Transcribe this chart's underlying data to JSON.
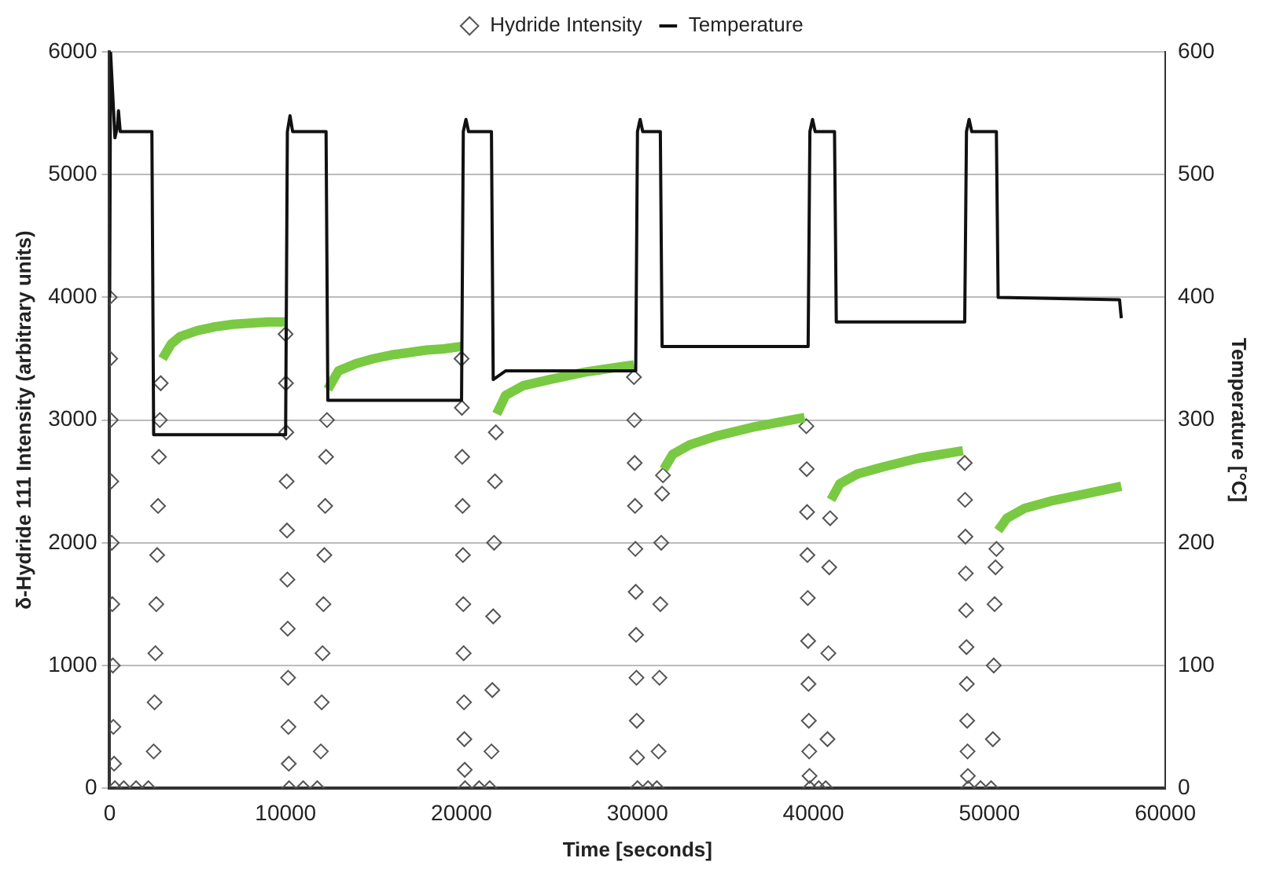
{
  "chart_data": {
    "type": "scatter",
    "xlabel": "Time [seconds]",
    "ylabel": "δ-Hydride 111 Intensity (arbitrary units)",
    "y2label": "Temperature [°C]",
    "xlim": [
      0,
      60000
    ],
    "xticks": [
      0,
      10000,
      20000,
      30000,
      40000,
      50000,
      60000
    ],
    "ylim": [
      0,
      6000
    ],
    "yticks": [
      0,
      1000,
      2000,
      3000,
      4000,
      5000,
      6000
    ],
    "y2lim": [
      0,
      600
    ],
    "y2ticks": [
      0,
      100,
      200,
      300,
      400,
      500,
      600
    ],
    "grid": "y",
    "legend": "top",
    "series": [
      {
        "name": "Hydride Intensity",
        "marker": "diamond",
        "color": "#555555",
        "x": [
          0,
          30,
          60,
          90,
          120,
          150,
          180,
          210,
          250,
          300,
          800,
          1500,
          2200,
          2500,
          2550,
          2600,
          2650,
          2700,
          2750,
          2800,
          2850,
          2900,
          10000,
          10020,
          10040,
          10060,
          10080,
          10100,
          10120,
          10140,
          10160,
          10180,
          10200,
          11000,
          11800,
          12000,
          12050,
          12100,
          12150,
          12200,
          12250,
          12300,
          12350,
          20000,
          20020,
          20040,
          20060,
          20080,
          20100,
          20120,
          20140,
          20160,
          20180,
          20200,
          21000,
          21600,
          21700,
          21750,
          21800,
          21850,
          21900,
          21950,
          29800,
          29820,
          29840,
          29860,
          29880,
          29900,
          29920,
          29940,
          29960,
          29980,
          30000,
          30600,
          31100,
          31200,
          31250,
          31300,
          31350,
          31400,
          31450,
          39600,
          39620,
          39640,
          39660,
          39680,
          39700,
          39720,
          39740,
          39760,
          39780,
          39800,
          40300,
          40700,
          40800,
          40850,
          40900,
          40950,
          48600,
          48620,
          48640,
          48660,
          48680,
          48700,
          48720,
          48740,
          48760,
          48780,
          48800,
          49500,
          50100,
          50200,
          50250,
          50300,
          50350,
          50400
        ],
        "values": [
          4000,
          3500,
          3000,
          2500,
          2000,
          1500,
          1000,
          500,
          200,
          0,
          0,
          0,
          0,
          300,
          700,
          1100,
          1500,
          1900,
          2300,
          2700,
          3000,
          3300,
          3700,
          3300,
          2900,
          2500,
          2100,
          1700,
          1300,
          900,
          500,
          200,
          0,
          0,
          0,
          300,
          700,
          1100,
          1500,
          1900,
          2300,
          2700,
          3000,
          3500,
          3100,
          2700,
          2300,
          1900,
          1500,
          1100,
          700,
          400,
          150,
          0,
          0,
          0,
          300,
          800,
          1400,
          2000,
          2500,
          2900,
          3350,
          3000,
          2650,
          2300,
          1950,
          1600,
          1250,
          900,
          550,
          250,
          0,
          0,
          0,
          300,
          900,
          1500,
          2000,
          2400,
          2550,
          2950,
          2600,
          2250,
          1900,
          1550,
          1200,
          850,
          550,
          300,
          100,
          0,
          0,
          0,
          400,
          1100,
          1800,
          2200,
          2650,
          2350,
          2050,
          1750,
          1450,
          1150,
          850,
          550,
          300,
          100,
          0,
          0,
          0,
          400,
          1000,
          1500,
          1800,
          1950
        ]
      },
      {
        "type": "line",
        "color": "#7ac943",
        "marker": "none",
        "x": [
          3000,
          3500,
          4000,
          5000,
          6000,
          7000,
          8000,
          9000,
          10000,
          11000,
          12400,
          13000,
          14000,
          15000,
          16000,
          17000,
          18000,
          19000,
          20000,
          21000,
          22000,
          22500,
          23500,
          25000,
          27000,
          29800,
          30500,
          31500,
          32000,
          33000,
          34500,
          36500,
          39500,
          40200,
          41000,
          41500,
          42500,
          44000,
          46000,
          48500,
          49500,
          50500,
          51000,
          52000,
          53500,
          55500,
          57500
        ],
        "values": [
          3500,
          3620,
          3680,
          3730,
          3760,
          3780,
          3790,
          3800,
          3800,
          null,
          3250,
          3400,
          3460,
          3500,
          3530,
          3550,
          3570,
          3580,
          3600,
          null,
          3050,
          3200,
          3280,
          3330,
          3390,
          3450,
          null,
          2600,
          2720,
          2800,
          2870,
          2940,
          3020,
          null,
          2350,
          2480,
          2560,
          2620,
          2690,
          2750,
          null,
          2100,
          2200,
          2280,
          2340,
          2400,
          2460
        ]
      },
      {
        "name": "Temperature",
        "type": "line",
        "axis": "y2",
        "color": "#111111",
        "marker": "none",
        "x": [
          0,
          50,
          300,
          450,
          500,
          600,
          2400,
          2500,
          10000,
          10100,
          10250,
          10400,
          12300,
          12400,
          20000,
          20100,
          20250,
          20400,
          21700,
          21800,
          22500,
          29900,
          30000,
          30150,
          30300,
          31300,
          31400,
          39700,
          39800,
          39950,
          40100,
          41200,
          41300,
          48600,
          48700,
          48850,
          49000,
          50400,
          50500,
          57400,
          57500
        ],
        "values": [
          400,
          600,
          530,
          540,
          552,
          535,
          535,
          288,
          288,
          535,
          548,
          535,
          535,
          316,
          316,
          535,
          545,
          535,
          535,
          333,
          340,
          340,
          535,
          545,
          535,
          535,
          360,
          360,
          535,
          545,
          535,
          535,
          380,
          380,
          535,
          545,
          535,
          535,
          400,
          398,
          383
        ]
      }
    ]
  }
}
